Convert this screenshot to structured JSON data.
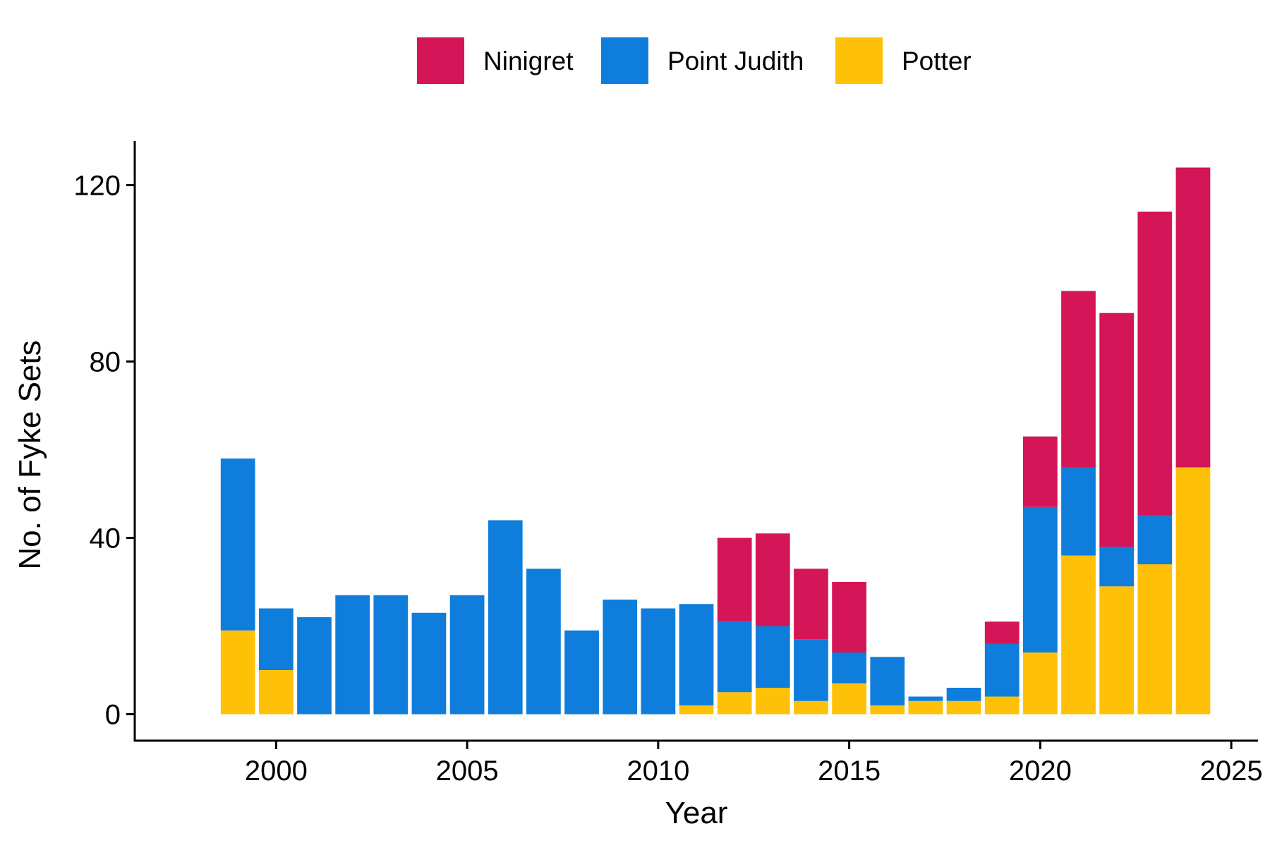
{
  "chart_data": {
    "type": "bar",
    "stacked": true,
    "title": "",
    "xlabel": "Year",
    "ylabel": "No. of Fyke Sets",
    "x": [
      1999,
      2000,
      2001,
      2002,
      2003,
      2004,
      2005,
      2006,
      2007,
      2008,
      2009,
      2010,
      2011,
      2012,
      2013,
      2014,
      2015,
      2016,
      2017,
      2018,
      2019,
      2020,
      2021,
      2022,
      2023,
      2024
    ],
    "xlim": [
      1996.3,
      2025.7
    ],
    "ylim": [
      -6,
      130
    ],
    "x_ticks": [
      2000,
      2005,
      2010,
      2015,
      2020,
      2025
    ],
    "x_tick_labels": [
      "2000",
      "2005",
      "2010",
      "2015",
      "2020",
      "2025"
    ],
    "y_ticks": [
      0,
      40,
      80,
      120
    ],
    "y_tick_labels": [
      "0",
      "40",
      "80",
      "120"
    ],
    "grid": false,
    "legend_position": "top",
    "series": [
      {
        "name": "Potter",
        "color": "#FFC107",
        "values": [
          19,
          10,
          0,
          0,
          0,
          0,
          0,
          0,
          0,
          0,
          0,
          0,
          2,
          5,
          6,
          3,
          7,
          2,
          3,
          3,
          4,
          14,
          36,
          29,
          34,
          56
        ]
      },
      {
        "name": "Point Judith",
        "color": "#0F7DDC",
        "values": [
          39,
          14,
          22,
          27,
          27,
          23,
          27,
          44,
          33,
          19,
          26,
          24,
          23,
          16,
          14,
          14,
          7,
          11,
          1,
          3,
          12,
          33,
          20,
          9,
          11,
          0
        ]
      },
      {
        "name": "Ninigret",
        "color": "#D41557",
        "values": [
          0,
          0,
          0,
          0,
          0,
          0,
          0,
          0,
          0,
          0,
          0,
          0,
          0,
          19,
          21,
          16,
          16,
          0,
          0,
          0,
          5,
          16,
          40,
          53,
          69,
          68
        ]
      }
    ],
    "legend": [
      {
        "label": "Ninigret",
        "color": "#D41557"
      },
      {
        "label": "Point Judith",
        "color": "#0F7DDC"
      },
      {
        "label": "Potter",
        "color": "#FFC107"
      }
    ]
  }
}
